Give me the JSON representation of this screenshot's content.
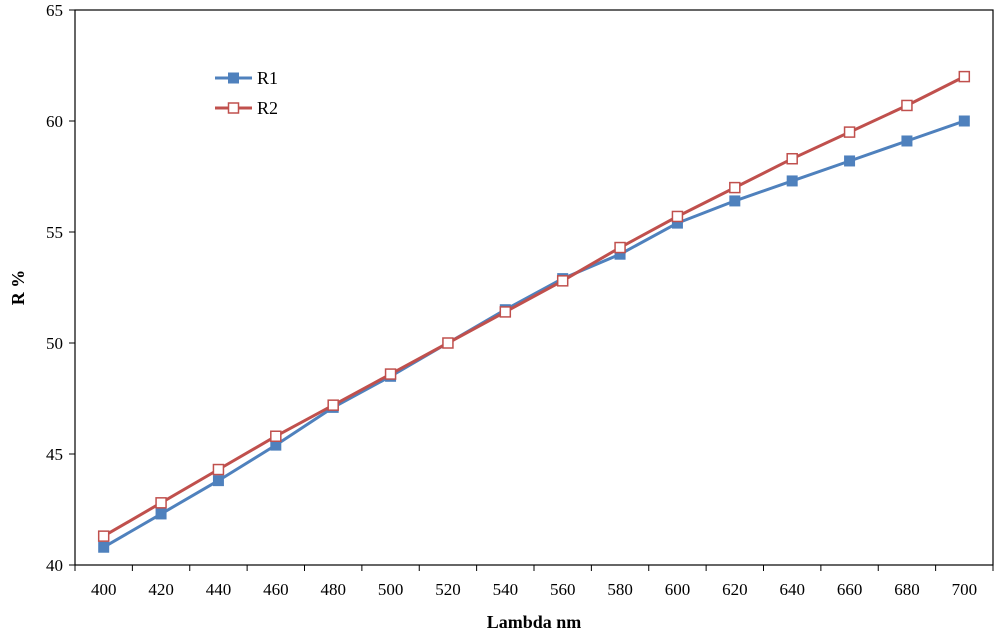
{
  "chart_data": {
    "type": "line",
    "title": "",
    "xlabel": "Lambda  nm",
    "ylabel": "R %",
    "x": [
      400,
      420,
      440,
      460,
      480,
      500,
      520,
      540,
      560,
      580,
      600,
      620,
      640,
      660,
      680,
      700
    ],
    "x_tick_labels": [
      "400",
      "420",
      "440",
      "460",
      "480",
      "500",
      "520",
      "540",
      "560",
      "580",
      "600",
      "620",
      "640",
      "660",
      "680",
      "700"
    ],
    "ylim": [
      40,
      65
    ],
    "y_ticks": [
      40,
      45,
      50,
      55,
      60,
      65
    ],
    "y_tick_labels": [
      "40",
      "45",
      "50",
      "55",
      "60",
      "65"
    ],
    "grid": false,
    "legend_position": "top-left",
    "series": [
      {
        "name": "R1",
        "color": "#4f81bd",
        "marker": "filled-square",
        "values": [
          40.8,
          42.3,
          43.8,
          45.4,
          47.1,
          48.5,
          50.0,
          51.5,
          52.9,
          54.0,
          55.4,
          56.4,
          57.3,
          58.2,
          59.1,
          60.0
        ]
      },
      {
        "name": "R2",
        "color": "#c0504d",
        "marker": "hollow-square",
        "values": [
          41.3,
          42.8,
          44.3,
          45.8,
          47.2,
          48.6,
          50.0,
          51.4,
          52.8,
          54.3,
          55.7,
          57.0,
          58.3,
          59.5,
          60.7,
          62.0
        ]
      }
    ]
  }
}
